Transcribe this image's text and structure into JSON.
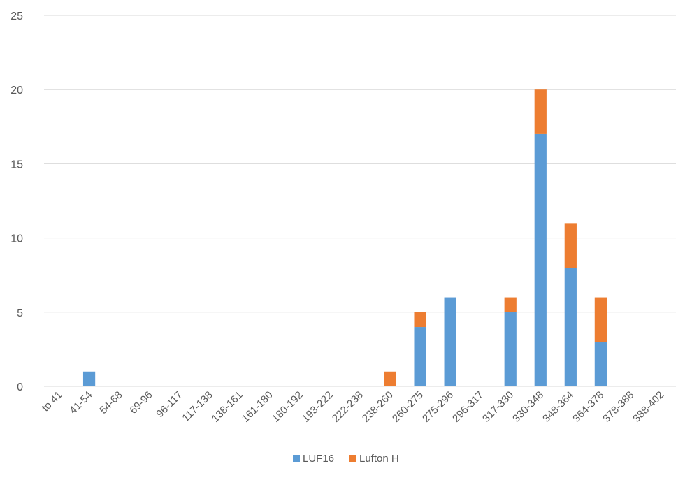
{
  "chart_data": {
    "type": "bar",
    "stacked": true,
    "categories": [
      "to 41",
      "41-54",
      "54-68",
      "69-96",
      "96-117",
      "117-138",
      "138-161",
      "161-180",
      "180-192",
      "193-222",
      "222-238",
      "238-260",
      "260-275",
      "275-296",
      "296-317",
      "317-330",
      "330-348",
      "348-364",
      "364-378",
      "378-388",
      "388-402"
    ],
    "series": [
      {
        "name": "LUF16",
        "color": "#5B9BD5",
        "values": [
          0,
          1,
          0,
          0,
          0,
          0,
          0,
          0,
          0,
          0,
          0,
          0,
          4,
          6,
          0,
          5,
          17,
          8,
          3,
          0,
          0
        ]
      },
      {
        "name": "Lufton H",
        "color": "#ED7D31",
        "values": [
          0,
          0,
          0,
          0,
          0,
          0,
          0,
          0,
          0,
          0,
          0,
          1,
          1,
          0,
          0,
          1,
          3,
          3,
          3,
          0,
          0
        ]
      }
    ],
    "y_ticks": [
      "0",
      "5",
      "10",
      "15",
      "20",
      "25"
    ],
    "ylim": [
      0,
      25
    ],
    "grid": true,
    "legend_position": "bottom",
    "title": "",
    "xlabel": "",
    "ylabel": ""
  }
}
